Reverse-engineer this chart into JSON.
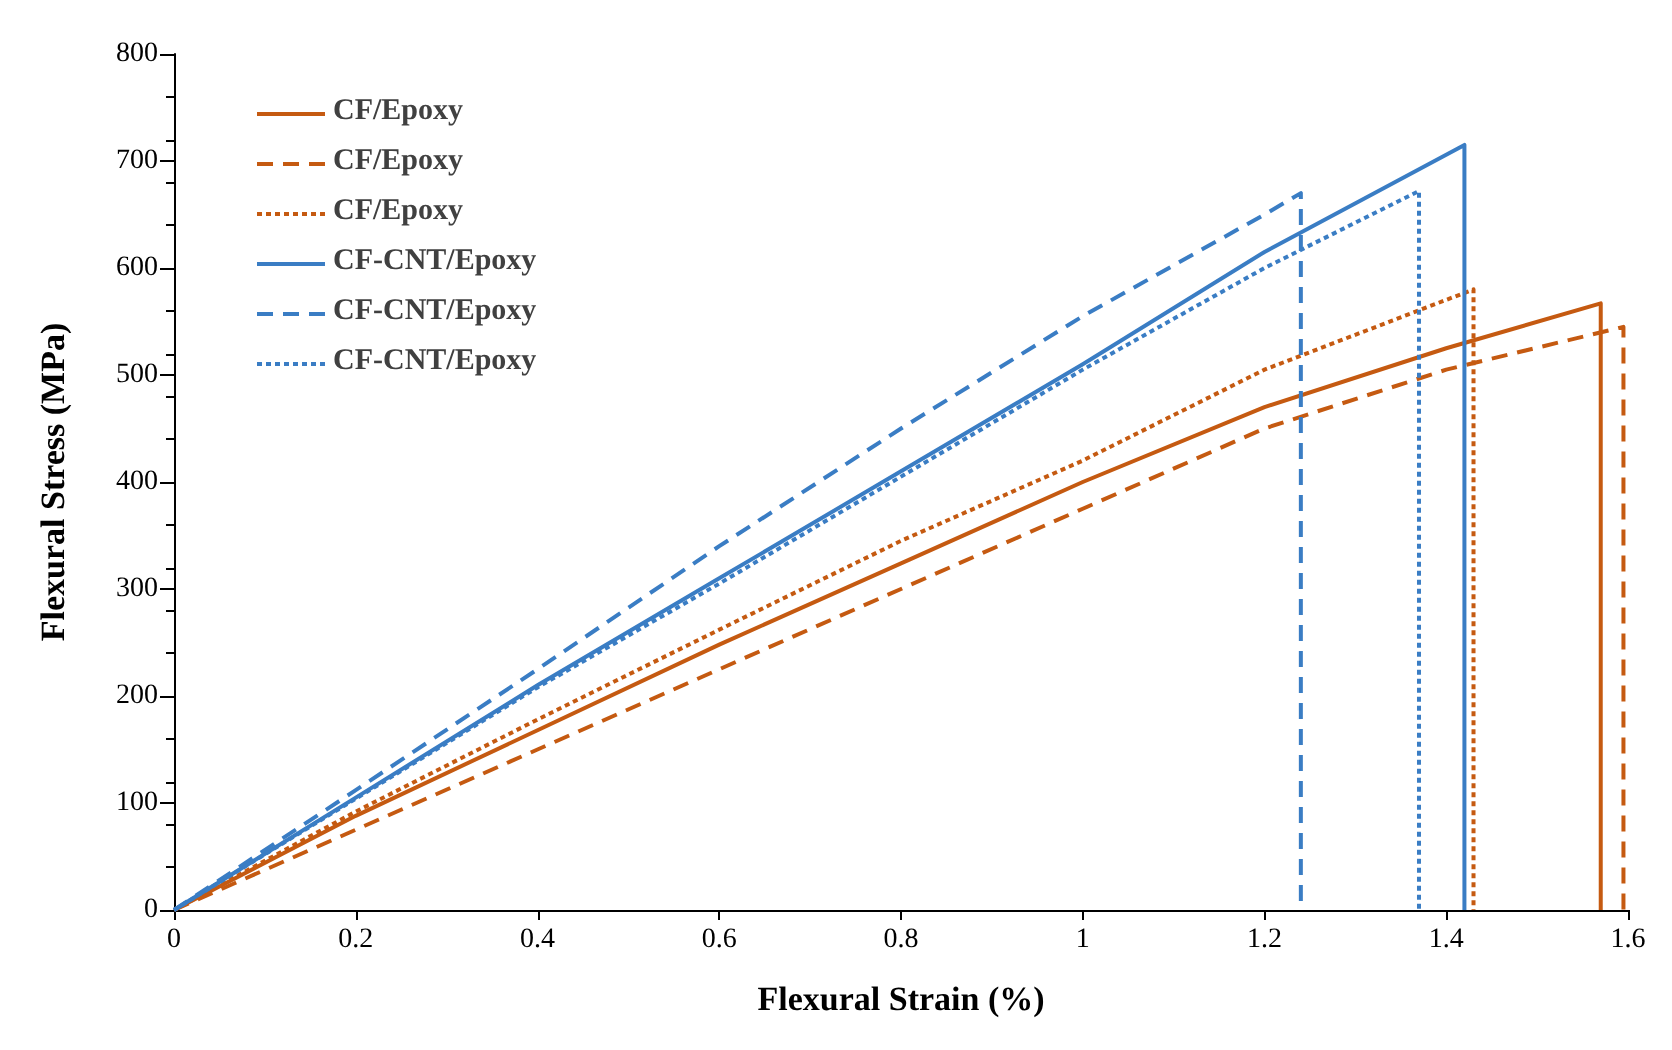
{
  "chart_data": {
    "type": "line",
    "xlabel": "Flexural Strain (%)",
    "ylabel": "Flexural Stress (MPa)",
    "xlim": [
      0,
      1.6
    ],
    "xticks": [
      0,
      0.2,
      0.4,
      0.6,
      0.8,
      1,
      1.2,
      1.4,
      1.6
    ],
    "ylim": [
      0,
      800
    ],
    "yticks": [
      0,
      100,
      200,
      300,
      400,
      500,
      600,
      700,
      800
    ],
    "grid": false,
    "legend": "top left",
    "marker": "none",
    "series": [
      {
        "name": "CF/Epoxy",
        "color": "#c55a11",
        "line_style": "solid",
        "x": [
          0,
          0.2,
          0.4,
          0.6,
          0.8,
          1,
          1.2,
          1.4,
          1.57,
          1.57
        ],
        "values": [
          0,
          88,
          168,
          248,
          324,
          400,
          470,
          525,
          567,
          0
        ]
      },
      {
        "name": "CF/Epoxy",
        "color": "#c55a11",
        "line_style": "dashed",
        "x": [
          0,
          0.2,
          0.4,
          0.6,
          0.8,
          1,
          1.2,
          1.4,
          1.595,
          1.595
        ],
        "values": [
          0,
          75,
          150,
          225,
          300,
          375,
          450,
          505,
          545,
          0
        ]
      },
      {
        "name": "CF/Epoxy",
        "color": "#c55a11",
        "line_style": "dotted",
        "x": [
          0,
          0.2,
          0.4,
          0.6,
          0.8,
          1,
          1.2,
          1.43,
          1.43
        ],
        "values": [
          0,
          92,
          178,
          262,
          345,
          420,
          505,
          580,
          0
        ]
      },
      {
        "name": "CF-CNT/Epoxy",
        "color": "#3a7dc4",
        "line_style": "solid",
        "x": [
          0,
          0.2,
          0.4,
          0.6,
          0.8,
          1,
          1.2,
          1.42,
          1.42
        ],
        "values": [
          0,
          105,
          210,
          310,
          410,
          510,
          615,
          715,
          0
        ]
      },
      {
        "name": "CF-CNT/Epoxy",
        "color": "#3a7dc4",
        "line_style": "dashed",
        "x": [
          0,
          0.2,
          0.4,
          0.6,
          0.8,
          1,
          1.2,
          1.24,
          1.24
        ],
        "values": [
          0,
          112,
          225,
          340,
          450,
          555,
          650,
          670,
          0
        ]
      },
      {
        "name": "CF-CNT/Epoxy",
        "color": "#3a7dc4",
        "line_style": "dotted",
        "x": [
          0,
          0.2,
          0.4,
          0.6,
          0.8,
          1,
          1.2,
          1.37,
          1.37
        ],
        "values": [
          0,
          104,
          208,
          305,
          405,
          505,
          600,
          672,
          0
        ]
      }
    ]
  }
}
